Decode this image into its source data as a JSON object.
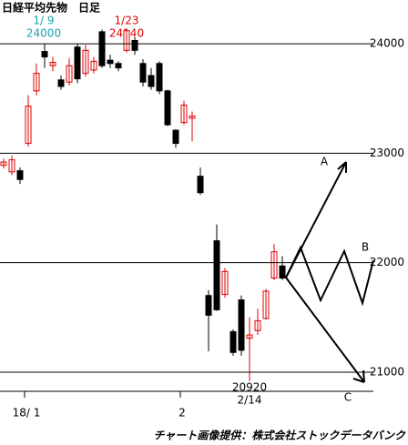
{
  "chart_data": {
    "type": "candlestick",
    "title": "日経平均先物　日足",
    "categories": [
      null,
      null,
      null,
      "18/ 1",
      null,
      null,
      null,
      null,
      null,
      null,
      null,
      null,
      null,
      null,
      null,
      null,
      null,
      null,
      null,
      null,
      null,
      null,
      "2",
      null,
      null,
      null,
      null,
      null,
      null,
      null,
      null,
      null,
      null,
      null,
      null
    ],
    "open": [
      22890,
      22830,
      22840,
      23090,
      23570,
      23930,
      23800,
      23670,
      23650,
      23970,
      23730,
      23760,
      24110,
      23850,
      23820,
      23940,
      24030,
      23820,
      23710,
      23820,
      23570,
      23210,
      23280,
      23320,
      22790,
      21700,
      22200,
      21710,
      21370,
      21660,
      21310,
      21380,
      21490,
      21860,
      21970
    ],
    "high": [
      22950,
      22980,
      22870,
      23530,
      23820,
      24000,
      23880,
      23710,
      23870,
      24000,
      23990,
      23880,
      24130,
      23900,
      23840,
      24140,
      24060,
      23860,
      23780,
      23840,
      23580,
      23220,
      23480,
      23380,
      22870,
      21750,
      22350,
      21950,
      21390,
      21700,
      21500,
      21580,
      21760,
      22170,
      22060
    ],
    "low": [
      22860,
      22800,
      22720,
      23060,
      23530,
      23780,
      23750,
      23580,
      23620,
      23640,
      23700,
      23730,
      23780,
      23780,
      23750,
      23920,
      23900,
      23610,
      23580,
      23540,
      23250,
      23050,
      23260,
      23110,
      22620,
      21190,
      21560,
      21680,
      21150,
      21150,
      20920,
      21340,
      21480,
      21840,
      21840
    ],
    "close": [
      22920,
      22940,
      22760,
      23430,
      23730,
      23880,
      23830,
      23610,
      23800,
      23680,
      23940,
      23840,
      23800,
      23820,
      23780,
      24120,
      23940,
      23650,
      23610,
      23570,
      23260,
      23090,
      23440,
      23340,
      22640,
      21520,
      21570,
      21920,
      21180,
      21200,
      21340,
      21470,
      21740,
      22100,
      21860
    ],
    "up_color": "#e00000",
    "down_color": "#000000",
    "ylim": [
      20825,
      24400
    ],
    "yticks": [
      21000,
      22000,
      23000,
      24000
    ],
    "grid": true,
    "annotations": [
      {
        "date": "1/ 9",
        "price": 24000,
        "color": "#1aa3b0"
      },
      {
        "date": "1/23",
        "price": 24140,
        "color": "#e00000"
      },
      {
        "date": "2/14",
        "price": 20920,
        "color": "#000000"
      }
    ],
    "scenario_labels": [
      "A",
      "B",
      "C"
    ],
    "source": "チャート画像提供：株式会社ストックデータバンク"
  }
}
